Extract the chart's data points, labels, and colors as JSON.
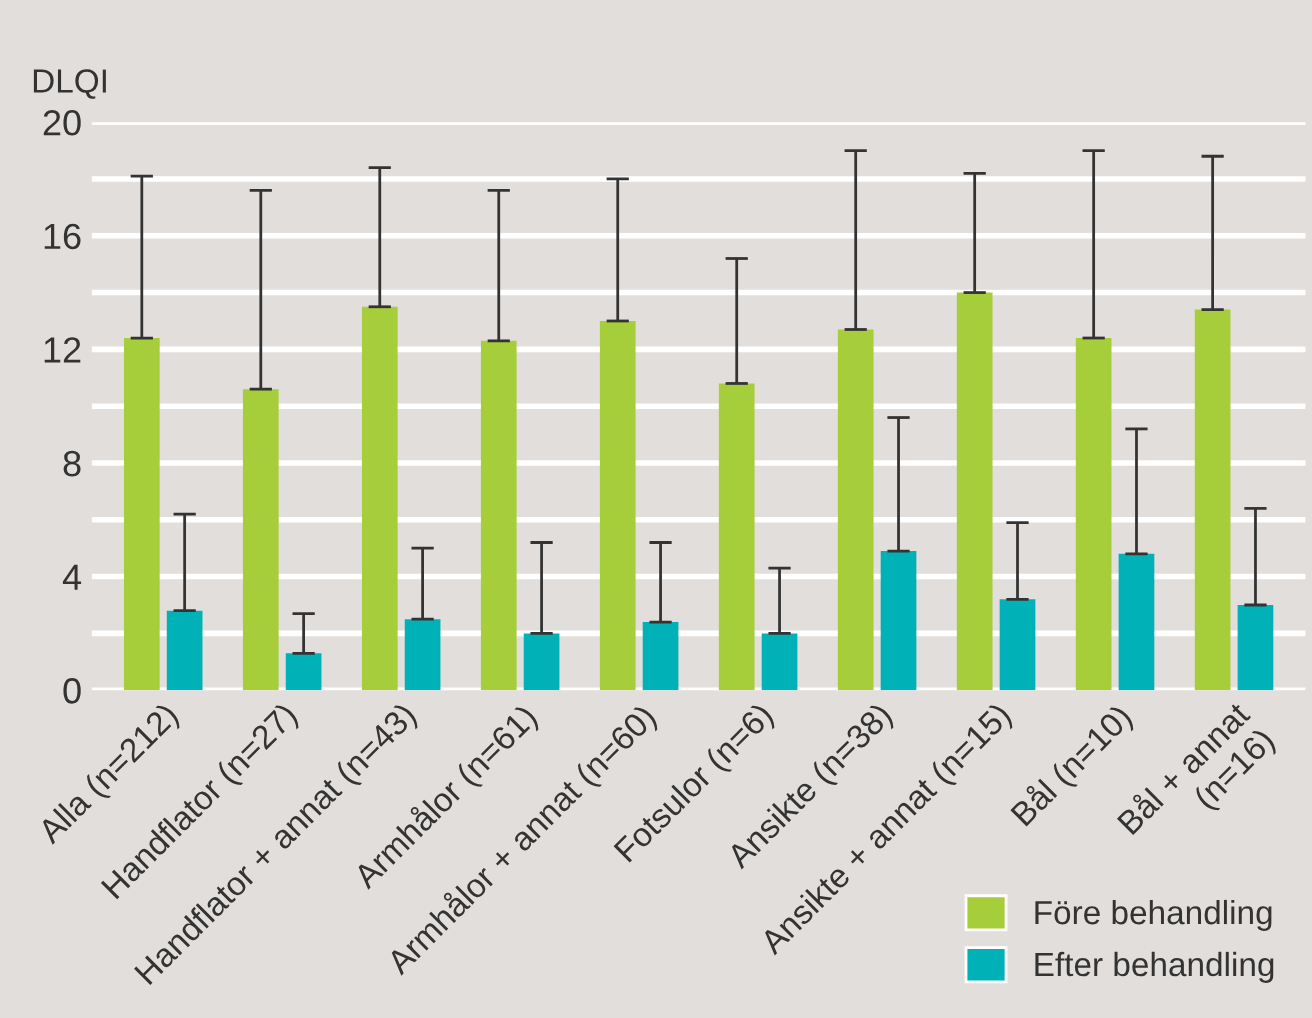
{
  "chart_data": {
    "type": "bar",
    "ylabel": "DLQI",
    "categories": [
      "Alla (n=212)",
      "Handflator (n=27)",
      "Handflator + annat (n=43)",
      "Armhålor (n=61)",
      "Armhålor + annat (n=60)",
      "Fotsulor (n=6)",
      "Ansikte (n=38)",
      "Ansikte + annat (n=15)",
      "Bål (n=10)",
      "Bål + annat\n(n=16)"
    ],
    "series": [
      {
        "name": "Före behandling",
        "color": "#a6cd3a",
        "values": [
          12.4,
          10.6,
          13.5,
          12.3,
          13.0,
          10.8,
          12.7,
          14.0,
          12.4,
          13.4
        ],
        "errors": [
          [
            12.4,
            18.1
          ],
          [
            10.6,
            17.6
          ],
          [
            13.5,
            18.4
          ],
          [
            12.3,
            17.6
          ],
          [
            13.0,
            18.0
          ],
          [
            10.8,
            15.2
          ],
          [
            12.7,
            19.0
          ],
          [
            14.0,
            18.2
          ],
          [
            12.4,
            19.0
          ],
          [
            13.4,
            18.8
          ]
        ]
      },
      {
        "name": "Efter behandling",
        "color": "#00b2b8",
        "values": [
          2.8,
          1.3,
          2.5,
          2.0,
          2.4,
          2.0,
          4.9,
          3.2,
          4.8,
          3.0
        ],
        "errors": [
          [
            2.8,
            6.2
          ],
          [
            1.3,
            2.7
          ],
          [
            2.5,
            5.0
          ],
          [
            2.0,
            5.2
          ],
          [
            2.4,
            5.2
          ],
          [
            2.0,
            4.3
          ],
          [
            4.9,
            9.6
          ],
          [
            3.2,
            5.9
          ],
          [
            4.8,
            9.2
          ],
          [
            3.0,
            6.4
          ]
        ]
      }
    ],
    "ylim": [
      0,
      20
    ],
    "yticks": [
      0,
      {
        "value": 2,
        "label": null
      },
      4,
      {
        "value": 6,
        "label": null
      },
      8,
      {
        "value": 10,
        "label": null
      },
      12,
      {
        "value": 14,
        "label": null
      },
      16,
      {
        "value": 18,
        "label": null
      },
      20
    ],
    "grid": "y",
    "legend": "bottom right"
  }
}
